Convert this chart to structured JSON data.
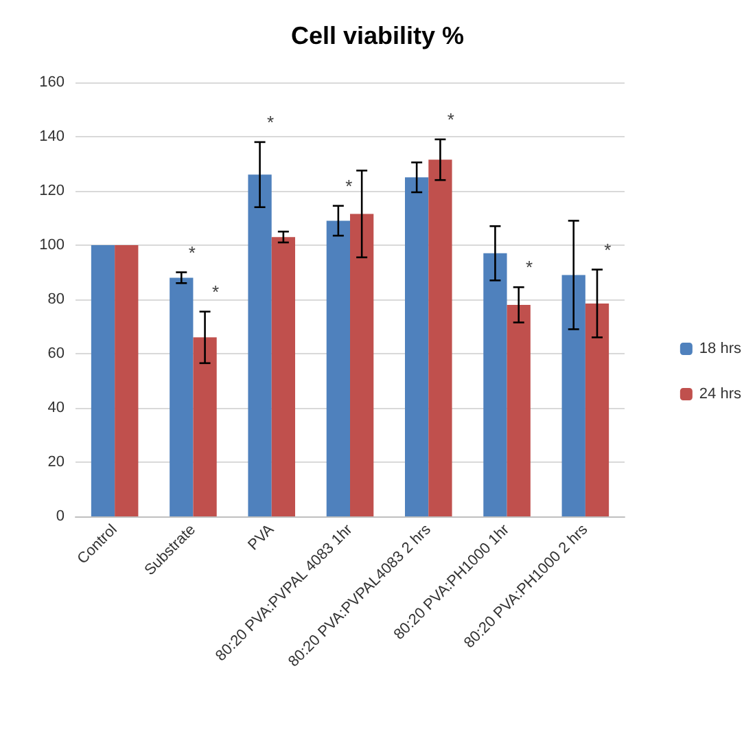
{
  "chart_data": {
    "type": "bar",
    "title": "Cell viability %",
    "categories": [
      "Control",
      "Substrate",
      "PVA",
      "80:20 PVA:PVPAL 4083 1hr",
      "80:20 PVA:PVPAL4083 2 hrs",
      "80:20 PVA:PH1000 1hr",
      "80:20 PVA:PH1000 2 hrs"
    ],
    "series": [
      {
        "name": "18 hrs",
        "color": "#4f81bd",
        "values": [
          100,
          88,
          126,
          109,
          125,
          97,
          89
        ],
        "errors": [
          null,
          2,
          12,
          5.5,
          5.5,
          10,
          20
        ]
      },
      {
        "name": "24 hrs",
        "color": "#c0504d",
        "values": [
          100,
          66,
          103,
          111.5,
          131.5,
          78,
          78.5
        ],
        "errors": [
          null,
          9.5,
          2,
          16,
          7.5,
          6.5,
          12.5
        ]
      }
    ],
    "ylim": [
      0,
      160
    ],
    "yticks": [
      0,
      20,
      40,
      60,
      80,
      100,
      120,
      140,
      160
    ],
    "grid": "y",
    "legend": "right",
    "annotations": [
      {
        "text": "*",
        "x": "Substrate",
        "y": 88
      },
      {
        "text": "*",
        "x": "Substrate",
        "y": 66
      },
      {
        "text": "*",
        "x": "PVA",
        "y": 126
      },
      {
        "text": "*",
        "x": "80:20 PVA:PVPAL 4083 1hr",
        "y": 109
      },
      {
        "text": "*",
        "x": "80:20 PVA:PVPAL4083 2 hrs",
        "y": 131.5
      },
      {
        "text": "*",
        "x": "80:20 PVA:PH1000 1hr",
        "y": 78
      },
      {
        "text": "*",
        "x": "80:20 PVA:PH1000 2 hrs",
        "y": 78.5
      }
    ]
  }
}
